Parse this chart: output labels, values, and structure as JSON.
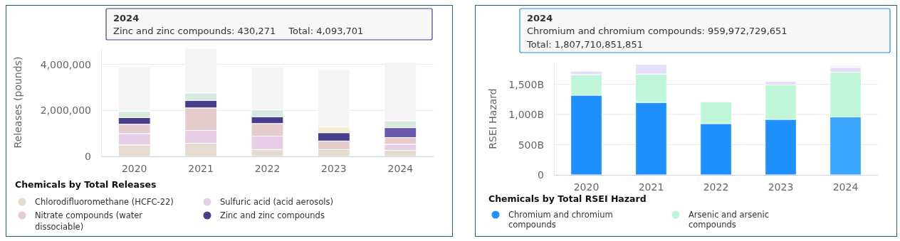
{
  "chart_data": [
    {
      "type": "bar",
      "stacked": true,
      "ylabel": "Releases (pounds)",
      "legend_title": "Chemicals by Total Releases",
      "legend": "bottom",
      "grid": "y",
      "categories": [
        "2020",
        "2021",
        "2022",
        "2023",
        "2024"
      ],
      "ylim": [
        0,
        4700000
      ],
      "yticks": [
        {
          "value": 0,
          "label": "0"
        },
        {
          "value": 2000000,
          "label": "2,000,000"
        },
        {
          "value": 4000000,
          "label": "4,000,000"
        }
      ],
      "series": [
        {
          "name": "Chlorodifluoromethane (HCFC-22)",
          "color": "#e6dbd1",
          "values": [
            500000,
            570000,
            300000,
            300000,
            270000
          ]
        },
        {
          "name": "Sulfuric acid (acid aerosols)",
          "color": "#e8cde6",
          "values": [
            500000,
            560000,
            580000,
            0,
            260000
          ]
        },
        {
          "name": "Nitrate compounds (water dissociable)",
          "color": "#e5cbcb",
          "values": [
            400000,
            980000,
            550000,
            370000,
            290000
          ]
        },
        {
          "name": "Zinc and zinc compounds",
          "color": "#483d8b",
          "colors": [
            "#483d8b",
            "#483d8b",
            "#483d8b",
            "#483d8b",
            "#6a5aad"
          ],
          "values": [
            290000,
            330000,
            300000,
            360000,
            430271
          ]
        },
        {
          "color": "#d6e9dd",
          "values": [
            270000,
            320000,
            300000,
            0,
            300000
          ]
        },
        {
          "color": "#f3edd3",
          "values": [
            0,
            0,
            0,
            260000,
            0
          ]
        },
        {
          "color": "#f4f4f4",
          "values": [
            1940000,
            1940000,
            1860000,
            2480000,
            2540000
          ]
        }
      ],
      "annotations": [
        "2024",
        "Zinc and zinc compounds: 430,271",
        "Total: 4,093,701"
      ]
    },
    {
      "type": "bar",
      "stacked": true,
      "ylabel": "RSEI Hazard",
      "legend_title": "Chemicals by Total RSEI Hazard",
      "legend": "bottom",
      "grid": "y",
      "categories": [
        "2020",
        "2021",
        "2022",
        "2023",
        "2024"
      ],
      "ylim": [
        0,
        1860000000000
      ],
      "yticks": [
        {
          "value": 0,
          "label": "0"
        },
        {
          "value": 500000000000,
          "label": "500B"
        },
        {
          "value": 1000000000000,
          "label": "1,000B"
        },
        {
          "value": 1500000000000,
          "label": "1,500B"
        }
      ],
      "series": [
        {
          "name": "Chromium and chromium compounds",
          "color": "#1e90ff",
          "colors": [
            "#1e90ff",
            "#1e90ff",
            "#1e90ff",
            "#1e90ff",
            "#3aa6ff"
          ],
          "values": [
            1320000000000,
            1200000000000,
            850000000000,
            920000000000,
            959972729651
          ]
        },
        {
          "name": "Arsenic and arsenic compounds",
          "color": "#bff5d9",
          "values": [
            340000000000,
            470000000000,
            360000000000,
            570000000000,
            740000000000
          ]
        },
        {
          "color": "#e3defa",
          "values": [
            60000000000,
            160000000000,
            null,
            60000000000,
            80000000000
          ]
        },
        {
          "color": "#eeedfb",
          "values": [
            20000000000,
            null,
            null,
            null,
            30000000000
          ]
        }
      ],
      "annotations": [
        "2024",
        "Chromium and chromium compounds: 959,972,729,651",
        "Total: 1,807,710,851,851"
      ]
    }
  ]
}
